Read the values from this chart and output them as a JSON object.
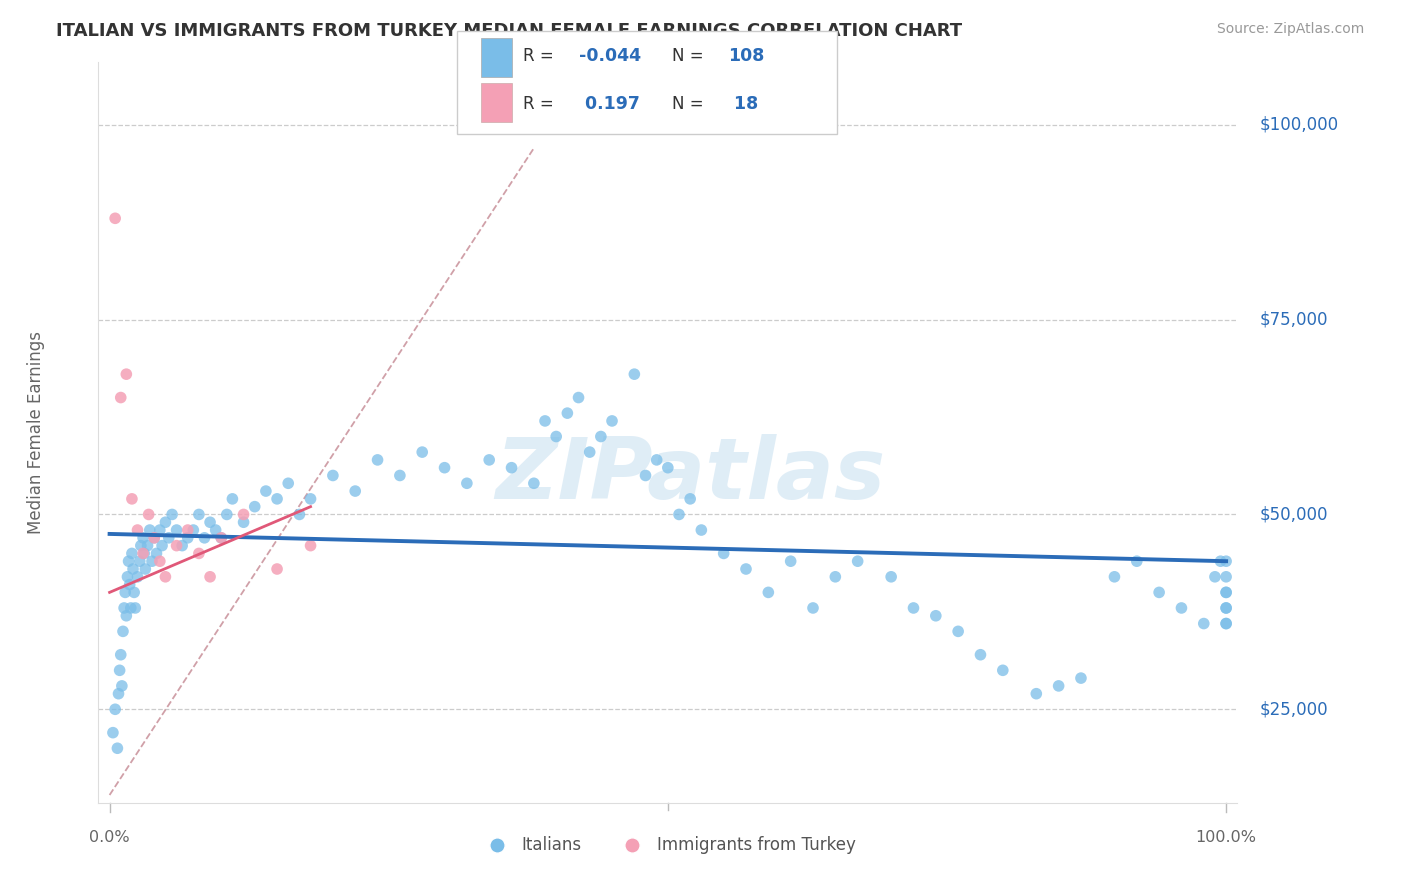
{
  "title": "ITALIAN VS IMMIGRANTS FROM TURKEY MEDIAN FEMALE EARNINGS CORRELATION CHART",
  "source": "Source: ZipAtlas.com",
  "ylabel": "Median Female Earnings",
  "color_blue_dot": "#7ABDE8",
  "color_blue_line": "#2B6CB8",
  "color_pink_dot": "#F4A0B5",
  "color_pink_line": "#E05878",
  "color_dashed": "#E8A0B0",
  "watermark": "ZIPatlas",
  "watermark_color": "#C5DFF0",
  "background_color": "#FFFFFF",
  "series1_label": "Italians",
  "series2_label": "Immigrants from Turkey",
  "r1": "-0.044",
  "n1": "108",
  "r2": "0.197",
  "n2": "18",
  "ytick_values": [
    25000,
    50000,
    75000,
    100000
  ],
  "ytick_labels": [
    "$25,000",
    "$50,000",
    "$75,000",
    "$100,000"
  ],
  "ymin": 13000,
  "ymax": 108000,
  "blue_x": [
    0.3,
    0.5,
    0.7,
    0.8,
    0.9,
    1.0,
    1.1,
    1.2,
    1.3,
    1.4,
    1.5,
    1.6,
    1.7,
    1.8,
    1.9,
    2.0,
    2.1,
    2.2,
    2.3,
    2.5,
    2.7,
    2.8,
    3.0,
    3.1,
    3.2,
    3.4,
    3.6,
    3.8,
    4.0,
    4.2,
    4.5,
    4.7,
    5.0,
    5.3,
    5.6,
    6.0,
    6.5,
    7.0,
    7.5,
    8.0,
    8.5,
    9.0,
    9.5,
    10.0,
    10.5,
    11.0,
    12.0,
    13.0,
    14.0,
    15.0,
    16.0,
    17.0,
    18.0,
    20.0,
    22.0,
    24.0,
    26.0,
    28.0,
    30.0,
    32.0,
    34.0,
    36.0,
    38.0,
    39.0,
    40.0,
    41.0,
    42.0,
    43.0,
    44.0,
    45.0,
    47.0,
    48.0,
    49.0,
    50.0,
    51.0,
    52.0,
    53.0,
    55.0,
    57.0,
    59.0,
    61.0,
    63.0,
    65.0,
    67.0,
    70.0,
    72.0,
    74.0,
    76.0,
    78.0,
    80.0,
    83.0,
    85.0,
    87.0,
    90.0,
    92.0,
    94.0,
    96.0,
    98.0,
    99.0,
    99.5,
    100.0,
    100.0,
    100.0,
    100.0,
    100.0,
    100.0,
    100.0,
    100.0
  ],
  "blue_y": [
    22000,
    25000,
    20000,
    27000,
    30000,
    32000,
    28000,
    35000,
    38000,
    40000,
    37000,
    42000,
    44000,
    41000,
    38000,
    45000,
    43000,
    40000,
    38000,
    42000,
    44000,
    46000,
    47000,
    45000,
    43000,
    46000,
    48000,
    44000,
    47000,
    45000,
    48000,
    46000,
    49000,
    47000,
    50000,
    48000,
    46000,
    47000,
    48000,
    50000,
    47000,
    49000,
    48000,
    47000,
    50000,
    52000,
    49000,
    51000,
    53000,
    52000,
    54000,
    50000,
    52000,
    55000,
    53000,
    57000,
    55000,
    58000,
    56000,
    54000,
    57000,
    56000,
    54000,
    62000,
    60000,
    63000,
    65000,
    58000,
    60000,
    62000,
    68000,
    55000,
    57000,
    56000,
    50000,
    52000,
    48000,
    45000,
    43000,
    40000,
    44000,
    38000,
    42000,
    44000,
    42000,
    38000,
    37000,
    35000,
    32000,
    30000,
    27000,
    28000,
    29000,
    42000,
    44000,
    40000,
    38000,
    36000,
    42000,
    44000,
    40000,
    38000,
    36000,
    42000,
    44000,
    40000,
    38000,
    36000
  ],
  "pink_x": [
    0.5,
    1.0,
    1.5,
    2.0,
    2.5,
    3.0,
    3.5,
    4.0,
    4.5,
    5.0,
    6.0,
    7.0,
    8.0,
    9.0,
    10.0,
    12.0,
    15.0,
    18.0
  ],
  "pink_y": [
    88000,
    65000,
    68000,
    52000,
    48000,
    45000,
    50000,
    47000,
    44000,
    42000,
    46000,
    48000,
    45000,
    42000,
    47000,
    50000,
    43000,
    46000
  ]
}
